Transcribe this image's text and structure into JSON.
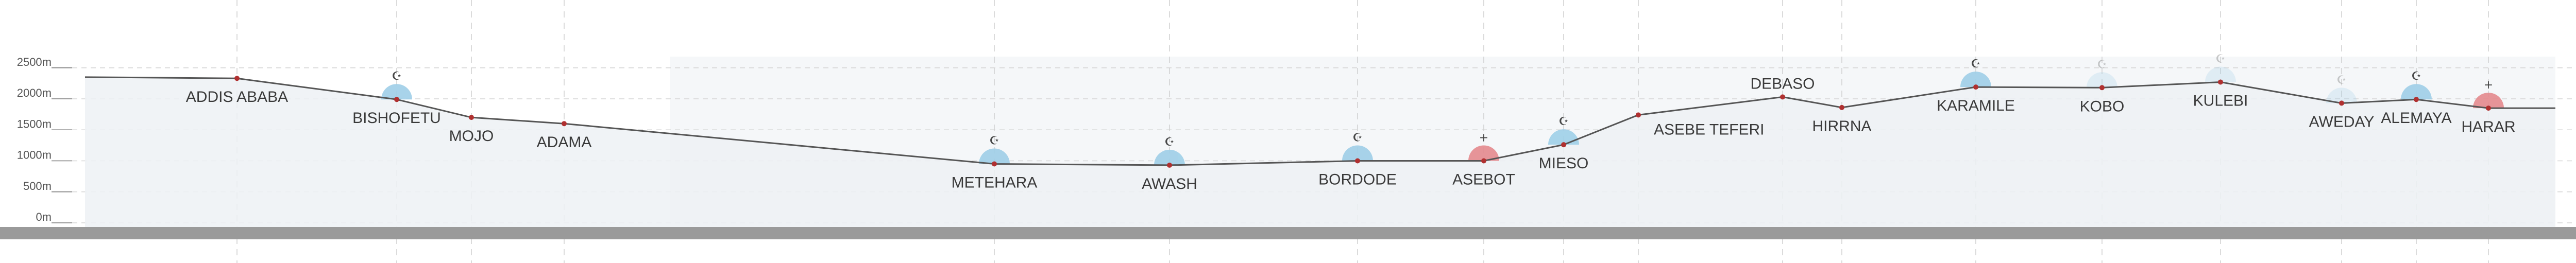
{
  "chart_data": {
    "type": "line",
    "y_unit": "m",
    "y_ticks": [
      "2500m",
      "2000m",
      "1500m",
      "1000m",
      "500m",
      "0m"
    ],
    "ylim": [
      0,
      2700
    ],
    "stations": [
      {
        "name": "ADDIS ABABA",
        "elevation_m": 2330,
        "label_pos": "below",
        "symbol": "none"
      },
      {
        "name": "BISHOFETU",
        "elevation_m": 1990,
        "label_pos": "below",
        "symbol": "mosque"
      },
      {
        "name": "MOJO",
        "elevation_m": 1700,
        "label_pos": "below",
        "symbol": "none"
      },
      {
        "name": "ADAMA",
        "elevation_m": 1600,
        "label_pos": "below",
        "symbol": "none"
      },
      {
        "name": "METEHARA",
        "elevation_m": 950,
        "label_pos": "below",
        "symbol": "mosque"
      },
      {
        "name": "AWASH",
        "elevation_m": 930,
        "label_pos": "below",
        "symbol": "mosque"
      },
      {
        "name": "BORDODE",
        "elevation_m": 1000,
        "label_pos": "below",
        "symbol": "mosque"
      },
      {
        "name": "ASEBOT",
        "elevation_m": 1000,
        "label_pos": "below",
        "symbol": "church"
      },
      {
        "name": "MIESO",
        "elevation_m": 1260,
        "label_pos": "below",
        "symbol": "mosque"
      },
      {
        "name": "ASEBE TEFERI",
        "elevation_m": 1740,
        "label_pos": "right",
        "symbol": "none"
      },
      {
        "name": "DEBASO",
        "elevation_m": 2030,
        "label_pos": "above",
        "symbol": "none"
      },
      {
        "name": "HIRRNA",
        "elevation_m": 1860,
        "label_pos": "below",
        "symbol": "none"
      },
      {
        "name": "KARAMILE",
        "elevation_m": 2190,
        "label_pos": "below",
        "symbol": "mosque"
      },
      {
        "name": "KOBO",
        "elevation_m": 2180,
        "label_pos": "below",
        "symbol": "mosque-faint"
      },
      {
        "name": "KULEBI",
        "elevation_m": 2270,
        "label_pos": "below",
        "symbol": "mosque-faint"
      },
      {
        "name": "AWEDAY",
        "elevation_m": 1930,
        "label_pos": "below",
        "symbol": "mosque-faint"
      },
      {
        "name": "ALEMAYA",
        "elevation_m": 1990,
        "label_pos": "below",
        "symbol": "mosque"
      },
      {
        "name": "HARAR",
        "elevation_m": 1850,
        "label_pos": "below",
        "symbol": "church"
      }
    ],
    "symbol_colors": {
      "mosque": "#9fcfe8",
      "church": "#e58a8e",
      "point": "#b03030",
      "line": "#555555",
      "ground": "#9a9a9a"
    }
  }
}
